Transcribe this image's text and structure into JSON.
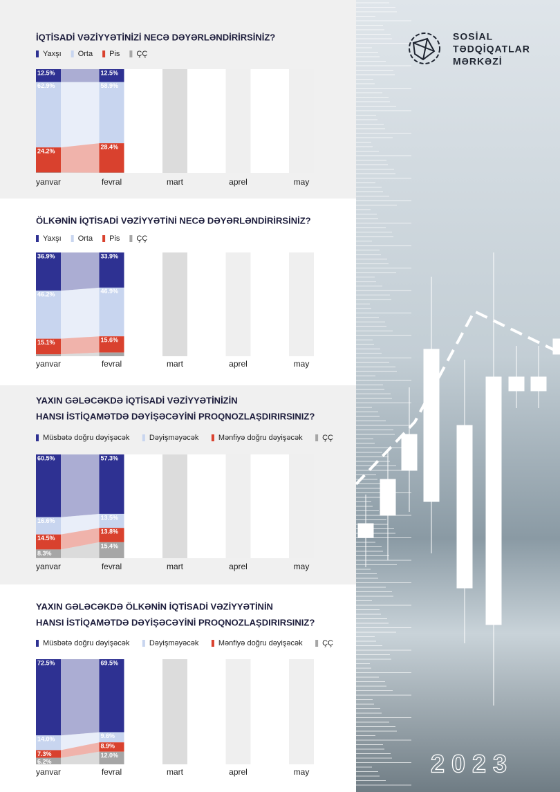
{
  "brand": {
    "lines": [
      "SOSİAL",
      "TƏDQİQATLAR",
      "MƏRKƏZİ"
    ],
    "year": "2023"
  },
  "chart_data": [
    {
      "type": "stacked_bar",
      "title": [
        "İQTİSADİ VƏZİYYƏTİNİZİ NECƏ DƏYƏRLƏNDİRİRSİNİZ?"
      ],
      "categories": [
        "yanvar",
        "fevral",
        "mart",
        "aprel",
        "may"
      ],
      "ylim": [
        0,
        100
      ],
      "series": [
        {
          "name": "Yaxşı",
          "color": "#2e3192",
          "values": [
            12.5,
            12.5,
            null,
            null,
            null
          ],
          "value_labels": [
            "12.5%",
            "12.5%",
            null,
            null,
            null
          ]
        },
        {
          "name": "Orta",
          "color": "#c8d5ef",
          "values": [
            62.9,
            58.9,
            null,
            null,
            null
          ],
          "value_labels": [
            "62.9%",
            "58.9%",
            null,
            null,
            null
          ]
        },
        {
          "name": "Pis",
          "color": "#d9412e",
          "values": [
            24.2,
            28.4,
            null,
            null,
            null
          ],
          "value_labels": [
            "24.2%",
            "28.4%",
            null,
            null,
            null
          ]
        },
        {
          "name": "ÇÇ",
          "color": "#a6a6a6",
          "values": [
            0.4,
            0.2,
            null,
            null,
            null
          ],
          "value_labels": [
            null,
            null,
            null,
            null,
            null
          ]
        }
      ]
    },
    {
      "type": "stacked_bar",
      "title": [
        "ÖLKƏNİN İQTİSADİ VƏZİYYƏTİNİ NECƏ DƏYƏRLƏNDİRİRSİNİZ?"
      ],
      "categories": [
        "yanvar",
        "fevral",
        "mart",
        "aprel",
        "may"
      ],
      "ylim": [
        0,
        100
      ],
      "series": [
        {
          "name": "Yaxşı",
          "color": "#2e3192",
          "values": [
            36.9,
            33.9,
            null,
            null,
            null
          ],
          "value_labels": [
            "36.9%",
            "33.9%",
            null,
            null,
            null
          ]
        },
        {
          "name": "Orta",
          "color": "#c8d5ef",
          "values": [
            46.2,
            46.9,
            null,
            null,
            null
          ],
          "value_labels": [
            "46.2%",
            "46.9%",
            null,
            null,
            null
          ]
        },
        {
          "name": "Pis",
          "color": "#d9412e",
          "values": [
            15.1,
            15.6,
            null,
            null,
            null
          ],
          "value_labels": [
            "15.1%",
            "15.6%",
            null,
            null,
            null
          ]
        },
        {
          "name": "ÇÇ",
          "color": "#a6a6a6",
          "values": [
            1.8,
            3.6,
            null,
            null,
            null
          ],
          "value_labels": [
            null,
            null,
            null,
            null,
            null
          ]
        }
      ]
    },
    {
      "type": "stacked_bar",
      "title": [
        "YAXIN GƏLƏCƏKDƏ İQTİSADİ VƏZİYYƏTİNİZİN",
        "HANSI İSTİQAMƏTDƏ DƏYİŞƏCƏYİNİ PROQNOZLAŞDIRIRSINIZ?"
      ],
      "categories": [
        "yanvar",
        "fevral",
        "mart",
        "aprel",
        "may"
      ],
      "ylim": [
        0,
        100
      ],
      "series": [
        {
          "name": "Müsbətə doğru dəyişəcək",
          "color": "#2e3192",
          "values": [
            60.5,
            57.3,
            null,
            null,
            null
          ],
          "value_labels": [
            "60.5%",
            "57.3%",
            null,
            null,
            null
          ]
        },
        {
          "name": "Dəyişməyəcək",
          "color": "#c8d5ef",
          "values": [
            16.6,
            13.5,
            null,
            null,
            null
          ],
          "value_labels": [
            "16.6%",
            "13.5%",
            null,
            null,
            null
          ]
        },
        {
          "name": "Mənfiyə doğru dəyişəcək",
          "color": "#d9412e",
          "values": [
            14.5,
            13.8,
            null,
            null,
            null
          ],
          "value_labels": [
            "14.5%",
            "13.8%",
            null,
            null,
            null
          ]
        },
        {
          "name": "ÇÇ",
          "color": "#a6a6a6",
          "values": [
            8.3,
            15.4,
            null,
            null,
            null
          ],
          "value_labels": [
            "8.3%",
            "15.4%",
            null,
            null,
            null
          ]
        }
      ]
    },
    {
      "type": "stacked_bar",
      "title": [
        "YAXIN GƏLƏCƏKDƏ ÖLKƏNİN İQTİSADİ VƏZİYYƏTİNİN",
        "HANSI İSTİQAMƏTDƏ DƏYİŞƏCƏYİNİ PROQNOZLAŞDIRIRSINIZ?"
      ],
      "categories": [
        "yanvar",
        "fevral",
        "mart",
        "aprel",
        "may"
      ],
      "ylim": [
        0,
        100
      ],
      "series": [
        {
          "name": "Müsbətə doğru dəyişəcək",
          "color": "#2e3192",
          "values": [
            72.5,
            69.5,
            null,
            null,
            null
          ],
          "value_labels": [
            "72.5%",
            "69.5%",
            null,
            null,
            null
          ]
        },
        {
          "name": "Dəyişməyəcək",
          "color": "#c8d5ef",
          "values": [
            14.0,
            9.6,
            null,
            null,
            null
          ],
          "value_labels": [
            "14.0%",
            "9.6%",
            null,
            null,
            null
          ]
        },
        {
          "name": "Mənfiyə doğru dəyişəcək",
          "color": "#d9412e",
          "values": [
            7.3,
            8.9,
            null,
            null,
            null
          ],
          "value_labels": [
            "7.3%",
            "8.9%",
            null,
            null,
            null
          ]
        },
        {
          "name": "ÇÇ",
          "color": "#a6a6a6",
          "values": [
            6.2,
            12.0,
            null,
            null,
            null
          ],
          "value_labels": [
            "6.2%",
            "12.0%",
            null,
            null,
            null
          ]
        }
      ]
    }
  ]
}
